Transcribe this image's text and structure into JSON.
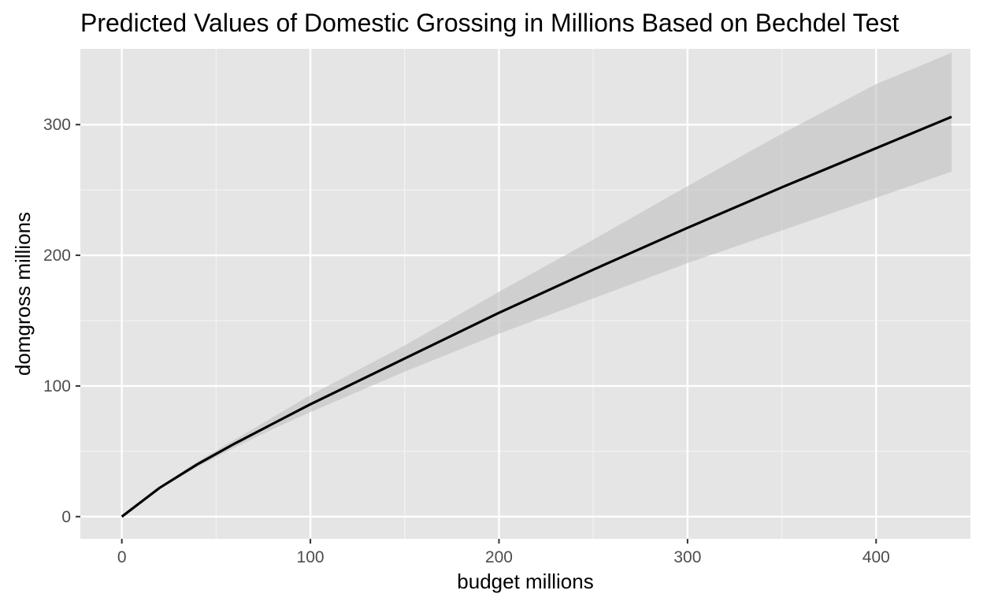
{
  "chart_data": {
    "type": "line",
    "title": "Predicted Values of Domestic Grossing in Millions Based on Bechdel Test",
    "xlabel": "budget millions",
    "ylabel": "domgross millions",
    "xlim": [
      -22,
      450
    ],
    "ylim": [
      -17,
      358
    ],
    "x_ticks": [
      0,
      100,
      200,
      300,
      400
    ],
    "x_tick_labels": [
      "0",
      "100",
      "200",
      "300",
      "400"
    ],
    "x_minor_ticks": [
      50,
      150,
      250,
      350
    ],
    "y_ticks": [
      0,
      100,
      200,
      300
    ],
    "y_tick_labels": [
      "0",
      "100",
      "200",
      "300"
    ],
    "y_minor_ticks": [
      50,
      150,
      250
    ],
    "grid": true,
    "series": [
      {
        "x": [
          0,
          20,
          40,
          60,
          80,
          100,
          150,
          200,
          250,
          300,
          350,
          400,
          440
        ],
        "y": [
          0,
          22,
          40,
          56,
          71,
          86,
          121,
          156,
          189,
          221,
          252,
          282,
          306
        ],
        "lower": [
          0,
          21,
          38,
          53,
          67,
          80,
          111,
          140,
          167,
          194,
          219,
          244,
          264
        ],
        "upper": [
          0,
          23,
          42,
          59,
          76,
          93,
          131,
          172,
          212,
          253,
          293,
          331,
          355
        ]
      }
    ],
    "colors": {
      "panel_bg": "#e5e5e5",
      "grid_major": "#ffffff",
      "grid_minor": "#f2f2f2",
      "line": "#000000",
      "ribbon": "#bfbfbf"
    }
  }
}
